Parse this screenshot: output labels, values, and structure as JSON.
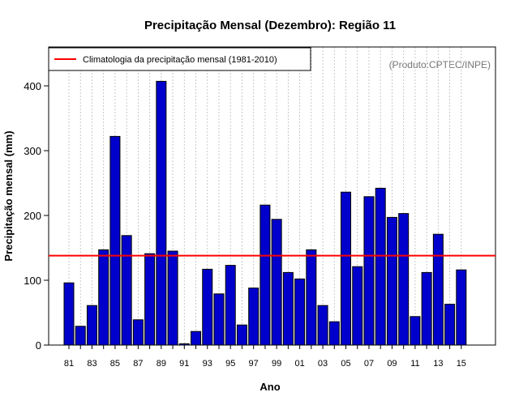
{
  "chart_data": {
    "type": "bar",
    "title": "Precipitação Mensal (Dezembro): Região 11",
    "xlabel": "Ano",
    "ylabel": "Precipitação mensal (mm)",
    "credit": "(Produto:CPTEC/INPE)",
    "ylim": [
      0,
      460
    ],
    "yticks": [
      0,
      100,
      200,
      300,
      400
    ],
    "grid": "vertical dotted",
    "legend_position": "top-left",
    "bar_color": "#0000CC",
    "line_color": "#FF0000",
    "categories": [
      "81",
      "82",
      "83",
      "84",
      "85",
      "86",
      "87",
      "88",
      "89",
      "90",
      "91",
      "92",
      "93",
      "94",
      "95",
      "96",
      "97",
      "98",
      "99",
      "00",
      "01",
      "02",
      "03",
      "04",
      "05",
      "06",
      "07",
      "08",
      "09",
      "10",
      "11",
      "12",
      "13",
      "14",
      "15"
    ],
    "x_tick_labels": [
      "81",
      "83",
      "85",
      "87",
      "89",
      "91",
      "93",
      "95",
      "97",
      "99",
      "01",
      "03",
      "05",
      "07",
      "09",
      "11",
      "13",
      "15"
    ],
    "values": [
      96,
      29,
      61,
      147,
      322,
      169,
      39,
      141,
      407,
      145,
      2,
      21,
      117,
      79,
      123,
      31,
      88,
      216,
      194,
      112,
      102,
      147,
      61,
      36,
      236,
      121,
      229,
      242,
      197,
      203,
      44,
      112,
      171,
      63,
      116
    ],
    "climatology": {
      "label": "Climatologia da precipitação mensal (1981-2010)",
      "value": 138
    }
  }
}
